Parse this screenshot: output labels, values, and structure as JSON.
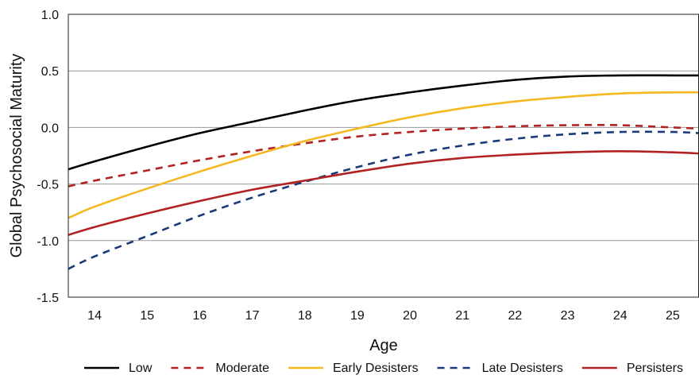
{
  "chart_data": {
    "type": "line",
    "title": "",
    "xlabel": "Age",
    "ylabel": "Global Psychosocial Maturity",
    "xlim": [
      13.5,
      25.5
    ],
    "ylim": [
      -1.5,
      1.0
    ],
    "x_ticks": [
      14,
      15,
      16,
      17,
      18,
      19,
      20,
      21,
      22,
      23,
      24,
      25
    ],
    "x_tick_labels": [
      "14",
      "15",
      "16",
      "17",
      "18",
      "19",
      "20",
      "21",
      "22",
      "23",
      "24",
      "25"
    ],
    "y_ticks": [
      -1.5,
      -1.0,
      -0.5,
      0.0,
      0.5,
      1.0
    ],
    "y_tick_labels": [
      "-1.5",
      "-1.0",
      "-0.5",
      "0.0",
      "0.5",
      "1.0"
    ],
    "grid": "horizontal",
    "legend_position": "bottom",
    "x": [
      13.5,
      14,
      15,
      16,
      17,
      18,
      19,
      20,
      21,
      22,
      23,
      24,
      25,
      25.5
    ],
    "series": [
      {
        "name": "Low",
        "color": "#000000",
        "dash": "solid",
        "values": [
          -0.37,
          -0.3,
          -0.17,
          -0.05,
          0.05,
          0.15,
          0.24,
          0.31,
          0.37,
          0.42,
          0.45,
          0.46,
          0.46,
          0.46
        ]
      },
      {
        "name": "Moderate",
        "color": "#b22222",
        "dash": "dashed",
        "values": [
          -0.52,
          -0.47,
          -0.38,
          -0.29,
          -0.21,
          -0.14,
          -0.08,
          -0.04,
          -0.01,
          0.01,
          0.02,
          0.02,
          0.0,
          -0.01
        ]
      },
      {
        "name": "Early Desisters",
        "color": "#f5b820",
        "dash": "solid",
        "values": [
          -0.8,
          -0.7,
          -0.54,
          -0.39,
          -0.25,
          -0.12,
          -0.01,
          0.09,
          0.17,
          0.23,
          0.27,
          0.3,
          0.31,
          0.31
        ]
      },
      {
        "name": "Late Desisters",
        "color": "#1a3a7a",
        "dash": "dashed",
        "values": [
          -1.25,
          -1.14,
          -0.96,
          -0.78,
          -0.62,
          -0.48,
          -0.35,
          -0.24,
          -0.16,
          -0.1,
          -0.06,
          -0.04,
          -0.04,
          -0.05
        ]
      },
      {
        "name": "Persisters",
        "color": "#b22222",
        "dash": "solid",
        "values": [
          -0.95,
          -0.88,
          -0.76,
          -0.65,
          -0.55,
          -0.47,
          -0.39,
          -0.32,
          -0.27,
          -0.24,
          -0.22,
          -0.21,
          -0.22,
          -0.23
        ]
      }
    ]
  }
}
